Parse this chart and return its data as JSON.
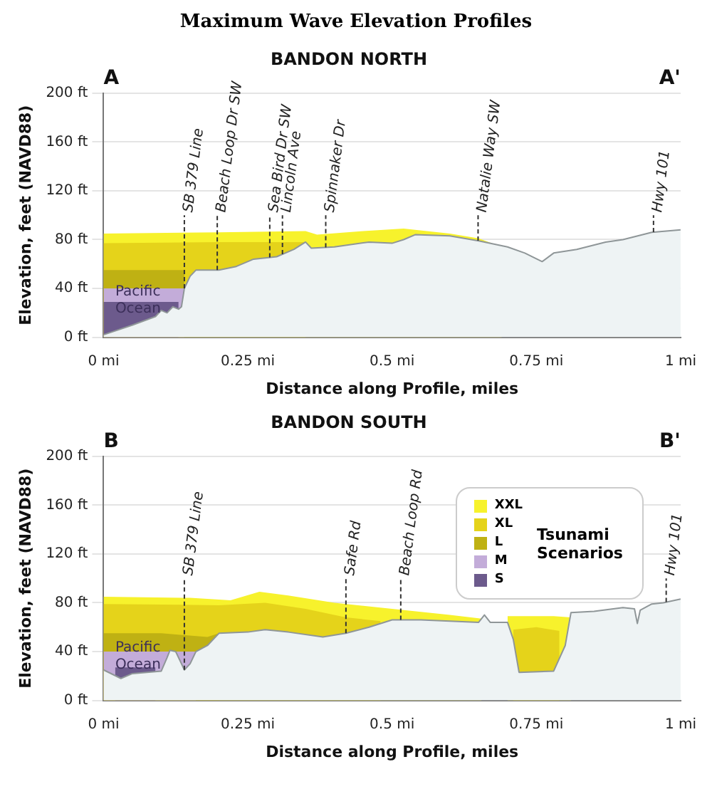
{
  "chart_data": [
    {
      "type": "area",
      "title": "Maximum Wave Elevation Profiles",
      "subtitle": "BANDON NORTH",
      "xlabel": "Distance along Profile, miles",
      "ylabel": "Elevation, feet (NAVD88)",
      "xlim": [
        0,
        1
      ],
      "ylim": [
        0,
        200
      ],
      "xticks": [
        {
          "value": 0,
          "label": "0 mi"
        },
        {
          "value": 0.25,
          "label": "0.25 mi"
        },
        {
          "value": 0.5,
          "label": "0.5 mi"
        },
        {
          "value": 0.75,
          "label": "0.75 mi"
        },
        {
          "value": 1,
          "label": "1 mi"
        }
      ],
      "yticks": [
        {
          "value": 0,
          "label": "0 ft"
        },
        {
          "value": 40,
          "label": "40 ft"
        },
        {
          "value": 80,
          "label": "80 ft"
        },
        {
          "value": 120,
          "label": "120 ft"
        },
        {
          "value": 160,
          "label": "160 ft"
        },
        {
          "value": 200,
          "label": "200 ft"
        }
      ],
      "grid": "y",
      "series": [
        {
          "color": "#eef3f4",
          "x": [
            0,
            0.05,
            0.09,
            0.1,
            0.11,
            0.12,
            0.13,
            0.135,
            0.14,
            0.15,
            0.16,
            0.2,
            0.23,
            0.26,
            0.3,
            0.33,
            0.35,
            0.36,
            0.4,
            0.46,
            0.5,
            0.52,
            0.54,
            0.6,
            0.65,
            0.7,
            0.73,
            0.76,
            0.78,
            0.82,
            0.87,
            0.9,
            0.95,
            1
          ],
          "values": [
            2,
            10,
            17,
            22,
            20,
            25,
            23,
            25,
            40,
            50,
            55,
            55,
            58,
            64,
            66,
            72,
            78,
            73,
            74,
            78,
            77,
            80,
            84,
            83,
            79,
            74,
            69,
            62,
            69,
            72,
            78,
            80,
            86,
            88
          ]
        },
        {
          "color": "#f7f22c",
          "x": [
            0,
            0.2,
            0.35,
            0.37,
            0.45,
            0.52,
            0.6,
            0.65,
            0.69
          ],
          "values": [
            85,
            86,
            87,
            84,
            87,
            89,
            85,
            81,
            74
          ]
        },
        {
          "color": "#e5d31a",
          "x": [
            0,
            0.2,
            0.33,
            0.35
          ],
          "values": [
            77,
            78,
            78,
            78
          ]
        },
        {
          "color": "#bfb113",
          "x": [
            0,
            0.14
          ],
          "values": [
            55,
            55
          ]
        },
        {
          "color": "#c3acd9",
          "x": [
            0,
            0.14
          ],
          "values": [
            40,
            40
          ]
        },
        {
          "color": "#6c5a8c",
          "x": [
            0,
            0.13
          ],
          "values": [
            29,
            29
          ]
        }
      ],
      "ref_lines": [
        {
          "axis": "x",
          "value": 0.14,
          "label": "SB 379 Line",
          "line_style": "dashed"
        },
        {
          "axis": "x",
          "value": 0.197,
          "label": "Beach Loop Dr SW",
          "line_style": "dashed"
        },
        {
          "axis": "x",
          "value": 0.288,
          "label": "Sea Bird Dr SW",
          "line_style": "dashed"
        },
        {
          "axis": "x",
          "value": 0.31,
          "label": "Lincoln Ave",
          "line_style": "dashed"
        },
        {
          "axis": "x",
          "value": 0.385,
          "label": "Spinnaker Dr",
          "line_style": "dashed"
        },
        {
          "axis": "x",
          "value": 0.649,
          "label": "Natalie Way SW",
          "line_style": "dashed"
        },
        {
          "axis": "x",
          "value": 0.953,
          "label": "Hwy 101",
          "line_style": "dashed"
        }
      ],
      "annotations": [
        "A",
        "A'",
        {
          "text": "Pacific Ocean",
          "x": 0.04,
          "y": 30
        }
      ]
    },
    {
      "type": "area",
      "subtitle": "BANDON SOUTH",
      "xlabel": "Distance along Profile, miles",
      "ylabel": "Elevation, feet (NAVD88)",
      "xlim": [
        0,
        1
      ],
      "ylim": [
        0,
        200
      ],
      "xticks": [
        {
          "value": 0,
          "label": "0 mi"
        },
        {
          "value": 0.25,
          "label": "0.25 mi"
        },
        {
          "value": 0.5,
          "label": "0.5 mi"
        },
        {
          "value": 0.75,
          "label": "0.75 mi"
        },
        {
          "value": 1,
          "label": "1 mi"
        }
      ],
      "yticks": [
        {
          "value": 0,
          "label": "0 ft"
        },
        {
          "value": 40,
          "label": "40 ft"
        },
        {
          "value": 80,
          "label": "80 ft"
        },
        {
          "value": 120,
          "label": "120 ft"
        },
        {
          "value": 160,
          "label": "160 ft"
        },
        {
          "value": 200,
          "label": "200 ft"
        }
      ],
      "grid": "y",
      "legend": "top right",
      "legend_title": "Tsunami Scenarios",
      "series": [
        {
          "color": "#eef3f4",
          "x": [
            0,
            0.03,
            0.05,
            0.1,
            0.11,
            0.115,
            0.125,
            0.135,
            0.14,
            0.15,
            0.16,
            0.18,
            0.2,
            0.25,
            0.28,
            0.32,
            0.38,
            0.42,
            0.46,
            0.5,
            0.55,
            0.6,
            0.65,
            0.66,
            0.67,
            0.7,
            0.71,
            0.72,
            0.78,
            0.8,
            0.81,
            0.85,
            0.9,
            0.92,
            0.925,
            0.93,
            0.95,
            0.97,
            1
          ],
          "values": [
            25,
            18,
            22,
            24,
            35,
            41,
            40,
            30,
            25,
            30,
            40,
            45,
            55,
            56,
            58,
            56,
            52,
            55,
            60,
            66,
            66,
            65,
            64,
            70,
            64,
            64,
            50,
            23,
            24,
            45,
            72,
            73,
            76,
            75,
            63,
            74,
            79,
            80,
            83
          ]
        },
        {
          "name": "XXL",
          "color": "#f7f22c",
          "x": [
            0,
            0.15,
            0.22,
            0.27,
            0.32,
            0.4,
            0.5,
            0.6,
            0.655,
            0.67,
            0.7,
            0.78,
            0.81
          ],
          "values": [
            85,
            84,
            82,
            89,
            86,
            80,
            75,
            70,
            67,
            null,
            69,
            69,
            68
          ]
        },
        {
          "name": "XL",
          "color": "#e5d31a",
          "x": [
            0,
            0.2,
            0.28,
            0.35,
            0.42,
            0.48,
            0.6,
            0.71,
            0.75,
            0.79
          ],
          "values": [
            79,
            78,
            80,
            75,
            68,
            65,
            null,
            58,
            60,
            57
          ]
        },
        {
          "name": "L",
          "color": "#bfb113",
          "x": [
            0,
            0.1,
            0.18,
            0.2
          ],
          "values": [
            55,
            55,
            52,
            55
          ]
        },
        {
          "name": "M",
          "color": "#c3acd9",
          "x": [
            0,
            0.16
          ],
          "values": [
            40,
            40
          ]
        },
        {
          "name": "S",
          "color": "#6c5a8c",
          "x": [
            0.02,
            0.09
          ],
          "values": [
            27,
            27
          ]
        }
      ],
      "ref_lines": [
        {
          "axis": "x",
          "value": 0.14,
          "label": "SB 379 Line",
          "line_style": "dashed"
        },
        {
          "axis": "x",
          "value": 0.42,
          "label": "Safe Rd",
          "line_style": "dashed"
        },
        {
          "axis": "x",
          "value": 0.515,
          "label": "Beach Loop Rd",
          "line_style": "dashed"
        },
        {
          "axis": "x",
          "value": 0.975,
          "label": "Hwy 101",
          "line_style": "dashed"
        }
      ],
      "annotations": [
        "B",
        "B'",
        {
          "text": "Pacific Ocean",
          "x": 0.04,
          "y": 36
        }
      ]
    }
  ]
}
